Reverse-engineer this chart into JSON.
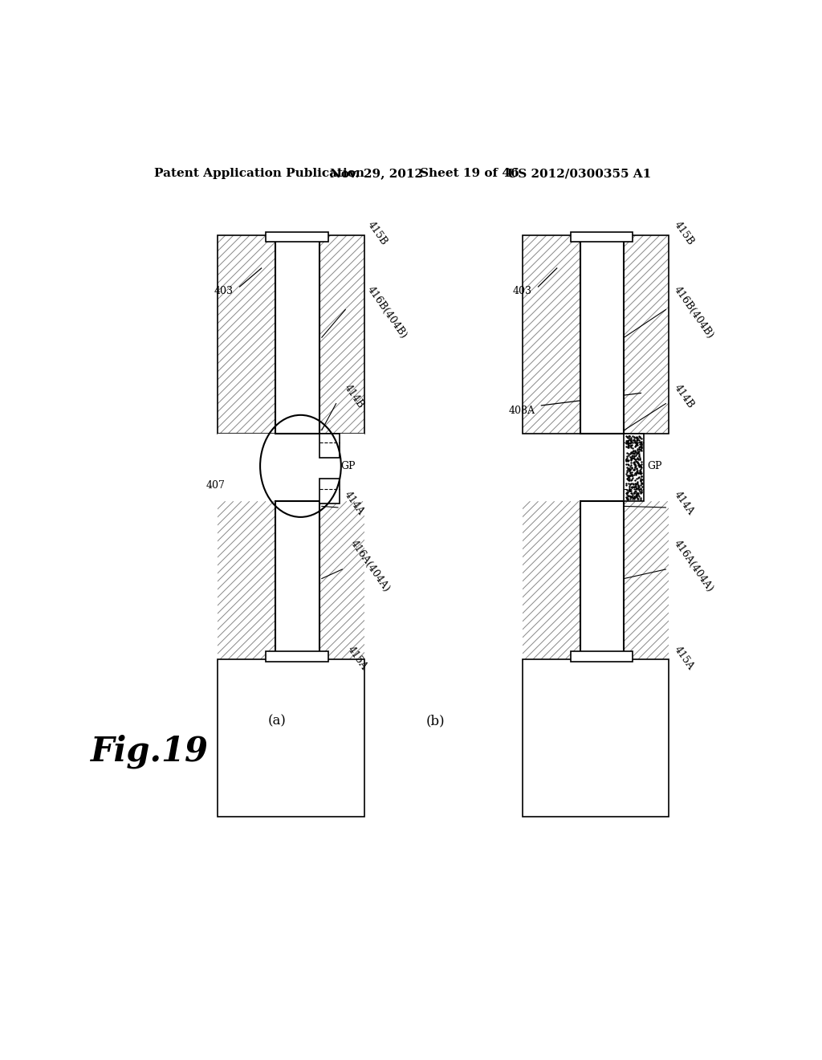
{
  "bg_color": "#ffffff",
  "header_text": "Patent Application Publication",
  "header_date": "Nov. 29, 2012",
  "header_sheet": "Sheet 19 of 46",
  "header_patent": "US 2012/0300355 A1",
  "fig_label": "Fig.19",
  "sub_a": "(a)",
  "sub_b": "(b)"
}
